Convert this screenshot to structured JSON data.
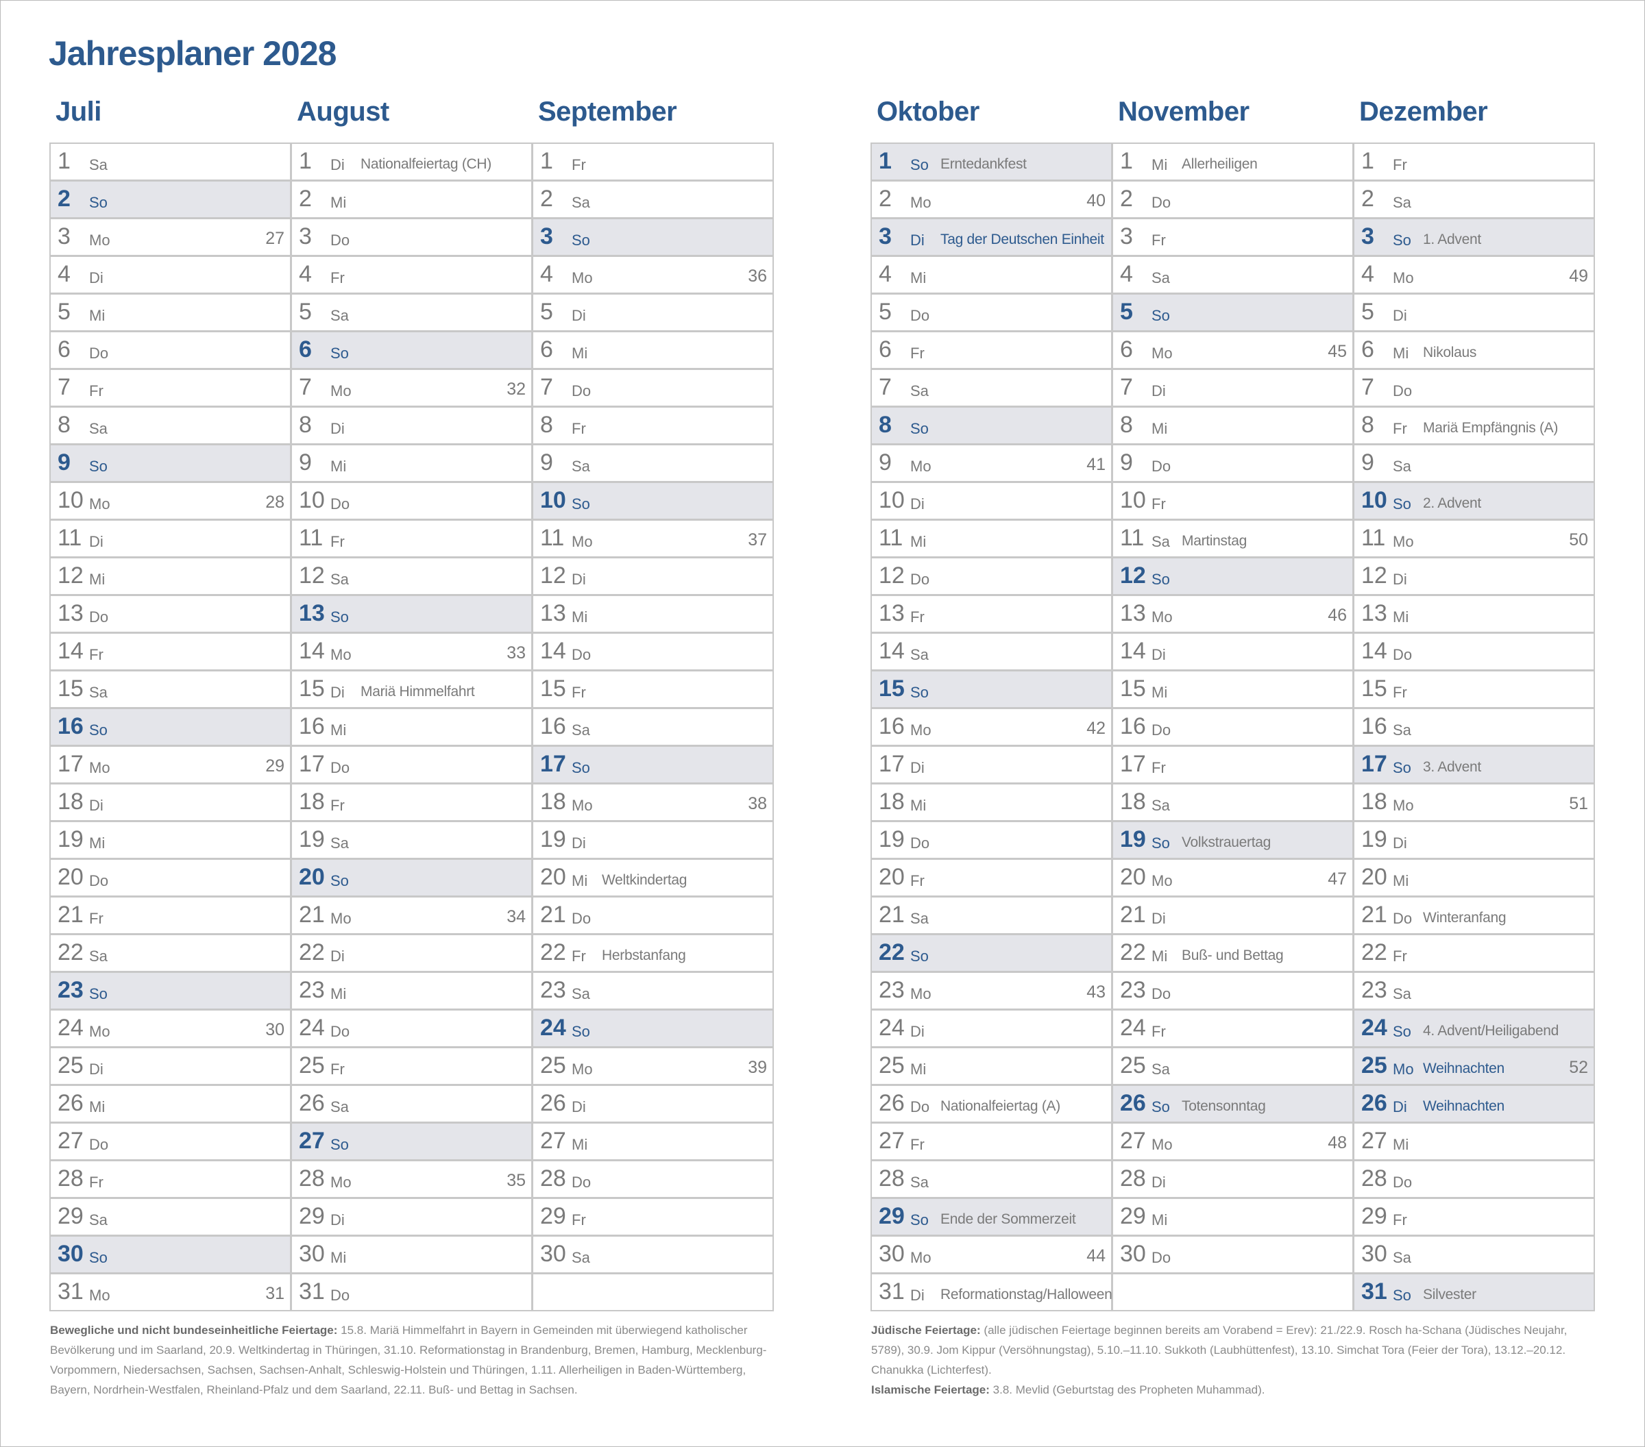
{
  "title": "Jahresplaner 2028",
  "months": [
    {
      "name": "Juli",
      "days": [
        {
          "d": 1,
          "wd": "Sa"
        },
        {
          "d": 2,
          "wd": "So"
        },
        {
          "d": 3,
          "wd": "Mo",
          "kw": 27
        },
        {
          "d": 4,
          "wd": "Di"
        },
        {
          "d": 5,
          "wd": "Mi"
        },
        {
          "d": 6,
          "wd": "Do"
        },
        {
          "d": 7,
          "wd": "Fr"
        },
        {
          "d": 8,
          "wd": "Sa"
        },
        {
          "d": 9,
          "wd": "So"
        },
        {
          "d": 10,
          "wd": "Mo",
          "kw": 28
        },
        {
          "d": 11,
          "wd": "Di"
        },
        {
          "d": 12,
          "wd": "Mi"
        },
        {
          "d": 13,
          "wd": "Do"
        },
        {
          "d": 14,
          "wd": "Fr"
        },
        {
          "d": 15,
          "wd": "Sa"
        },
        {
          "d": 16,
          "wd": "So"
        },
        {
          "d": 17,
          "wd": "Mo",
          "kw": 29
        },
        {
          "d": 18,
          "wd": "Di"
        },
        {
          "d": 19,
          "wd": "Mi"
        },
        {
          "d": 20,
          "wd": "Do"
        },
        {
          "d": 21,
          "wd": "Fr"
        },
        {
          "d": 22,
          "wd": "Sa"
        },
        {
          "d": 23,
          "wd": "So"
        },
        {
          "d": 24,
          "wd": "Mo",
          "kw": 30
        },
        {
          "d": 25,
          "wd": "Di"
        },
        {
          "d": 26,
          "wd": "Mi"
        },
        {
          "d": 27,
          "wd": "Do"
        },
        {
          "d": 28,
          "wd": "Fr"
        },
        {
          "d": 29,
          "wd": "Sa"
        },
        {
          "d": 30,
          "wd": "So"
        },
        {
          "d": 31,
          "wd": "Mo",
          "kw": 31
        }
      ]
    },
    {
      "name": "August",
      "days": [
        {
          "d": 1,
          "wd": "Di",
          "note": "Nationalfeiertag (CH)"
        },
        {
          "d": 2,
          "wd": "Mi"
        },
        {
          "d": 3,
          "wd": "Do"
        },
        {
          "d": 4,
          "wd": "Fr"
        },
        {
          "d": 5,
          "wd": "Sa"
        },
        {
          "d": 6,
          "wd": "So"
        },
        {
          "d": 7,
          "wd": "Mo",
          "kw": 32
        },
        {
          "d": 8,
          "wd": "Di"
        },
        {
          "d": 9,
          "wd": "Mi"
        },
        {
          "d": 10,
          "wd": "Do"
        },
        {
          "d": 11,
          "wd": "Fr"
        },
        {
          "d": 12,
          "wd": "Sa"
        },
        {
          "d": 13,
          "wd": "So"
        },
        {
          "d": 14,
          "wd": "Mo",
          "kw": 33
        },
        {
          "d": 15,
          "wd": "Di",
          "note": "Mariä Himmelfahrt"
        },
        {
          "d": 16,
          "wd": "Mi"
        },
        {
          "d": 17,
          "wd": "Do"
        },
        {
          "d": 18,
          "wd": "Fr"
        },
        {
          "d": 19,
          "wd": "Sa"
        },
        {
          "d": 20,
          "wd": "So"
        },
        {
          "d": 21,
          "wd": "Mo",
          "kw": 34
        },
        {
          "d": 22,
          "wd": "Di"
        },
        {
          "d": 23,
          "wd": "Mi"
        },
        {
          "d": 24,
          "wd": "Do"
        },
        {
          "d": 25,
          "wd": "Fr"
        },
        {
          "d": 26,
          "wd": "Sa"
        },
        {
          "d": 27,
          "wd": "So"
        },
        {
          "d": 28,
          "wd": "Mo",
          "kw": 35
        },
        {
          "d": 29,
          "wd": "Di"
        },
        {
          "d": 30,
          "wd": "Mi"
        },
        {
          "d": 31,
          "wd": "Do"
        }
      ]
    },
    {
      "name": "September",
      "days": [
        {
          "d": 1,
          "wd": "Fr"
        },
        {
          "d": 2,
          "wd": "Sa"
        },
        {
          "d": 3,
          "wd": "So"
        },
        {
          "d": 4,
          "wd": "Mo",
          "kw": 36
        },
        {
          "d": 5,
          "wd": "Di"
        },
        {
          "d": 6,
          "wd": "Mi"
        },
        {
          "d": 7,
          "wd": "Do"
        },
        {
          "d": 8,
          "wd": "Fr"
        },
        {
          "d": 9,
          "wd": "Sa"
        },
        {
          "d": 10,
          "wd": "So"
        },
        {
          "d": 11,
          "wd": "Mo",
          "kw": 37
        },
        {
          "d": 12,
          "wd": "Di"
        },
        {
          "d": 13,
          "wd": "Mi"
        },
        {
          "d": 14,
          "wd": "Do"
        },
        {
          "d": 15,
          "wd": "Fr"
        },
        {
          "d": 16,
          "wd": "Sa"
        },
        {
          "d": 17,
          "wd": "So"
        },
        {
          "d": 18,
          "wd": "Mo",
          "kw": 38
        },
        {
          "d": 19,
          "wd": "Di"
        },
        {
          "d": 20,
          "wd": "Mi",
          "note": "Weltkindertag"
        },
        {
          "d": 21,
          "wd": "Do"
        },
        {
          "d": 22,
          "wd": "Fr",
          "note": "Herbstanfang"
        },
        {
          "d": 23,
          "wd": "Sa"
        },
        {
          "d": 24,
          "wd": "So"
        },
        {
          "d": 25,
          "wd": "Mo",
          "kw": 39
        },
        {
          "d": 26,
          "wd": "Di"
        },
        {
          "d": 27,
          "wd": "Mi"
        },
        {
          "d": 28,
          "wd": "Do"
        },
        {
          "d": 29,
          "wd": "Fr"
        },
        {
          "d": 30,
          "wd": "Sa"
        }
      ]
    },
    {
      "name": "Oktober",
      "days": [
        {
          "d": 1,
          "wd": "So",
          "note": "Erntedankfest"
        },
        {
          "d": 2,
          "wd": "Mo",
          "kw": 40
        },
        {
          "d": 3,
          "wd": "Di",
          "note": "Tag der Deutschen Einheit",
          "public": true
        },
        {
          "d": 4,
          "wd": "Mi"
        },
        {
          "d": 5,
          "wd": "Do"
        },
        {
          "d": 6,
          "wd": "Fr"
        },
        {
          "d": 7,
          "wd": "Sa"
        },
        {
          "d": 8,
          "wd": "So"
        },
        {
          "d": 9,
          "wd": "Mo",
          "kw": 41
        },
        {
          "d": 10,
          "wd": "Di"
        },
        {
          "d": 11,
          "wd": "Mi"
        },
        {
          "d": 12,
          "wd": "Do"
        },
        {
          "d": 13,
          "wd": "Fr"
        },
        {
          "d": 14,
          "wd": "Sa"
        },
        {
          "d": 15,
          "wd": "So"
        },
        {
          "d": 16,
          "wd": "Mo",
          "kw": 42
        },
        {
          "d": 17,
          "wd": "Di"
        },
        {
          "d": 18,
          "wd": "Mi"
        },
        {
          "d": 19,
          "wd": "Do"
        },
        {
          "d": 20,
          "wd": "Fr"
        },
        {
          "d": 21,
          "wd": "Sa"
        },
        {
          "d": 22,
          "wd": "So"
        },
        {
          "d": 23,
          "wd": "Mo",
          "kw": 43
        },
        {
          "d": 24,
          "wd": "Di"
        },
        {
          "d": 25,
          "wd": "Mi"
        },
        {
          "d": 26,
          "wd": "Do",
          "note": "Nationalfeiertag (A)"
        },
        {
          "d": 27,
          "wd": "Fr"
        },
        {
          "d": 28,
          "wd": "Sa"
        },
        {
          "d": 29,
          "wd": "So",
          "note": "Ende der Sommerzeit"
        },
        {
          "d": 30,
          "wd": "Mo",
          "kw": 44
        },
        {
          "d": 31,
          "wd": "Di",
          "note": "Reformationstag/Halloween"
        }
      ]
    },
    {
      "name": "November",
      "days": [
        {
          "d": 1,
          "wd": "Mi",
          "note": "Allerheiligen"
        },
        {
          "d": 2,
          "wd": "Do"
        },
        {
          "d": 3,
          "wd": "Fr"
        },
        {
          "d": 4,
          "wd": "Sa"
        },
        {
          "d": 5,
          "wd": "So"
        },
        {
          "d": 6,
          "wd": "Mo",
          "kw": 45
        },
        {
          "d": 7,
          "wd": "Di"
        },
        {
          "d": 8,
          "wd": "Mi"
        },
        {
          "d": 9,
          "wd": "Do"
        },
        {
          "d": 10,
          "wd": "Fr"
        },
        {
          "d": 11,
          "wd": "Sa",
          "note": "Martinstag"
        },
        {
          "d": 12,
          "wd": "So"
        },
        {
          "d": 13,
          "wd": "Mo",
          "kw": 46
        },
        {
          "d": 14,
          "wd": "Di"
        },
        {
          "d": 15,
          "wd": "Mi"
        },
        {
          "d": 16,
          "wd": "Do"
        },
        {
          "d": 17,
          "wd": "Fr"
        },
        {
          "d": 18,
          "wd": "Sa"
        },
        {
          "d": 19,
          "wd": "So",
          "note": "Volkstrauertag"
        },
        {
          "d": 20,
          "wd": "Mo",
          "kw": 47
        },
        {
          "d": 21,
          "wd": "Di"
        },
        {
          "d": 22,
          "wd": "Mi",
          "note": "Buß- und Bettag"
        },
        {
          "d": 23,
          "wd": "Do"
        },
        {
          "d": 24,
          "wd": "Fr"
        },
        {
          "d": 25,
          "wd": "Sa"
        },
        {
          "d": 26,
          "wd": "So",
          "note": "Totensonntag"
        },
        {
          "d": 27,
          "wd": "Mo",
          "kw": 48
        },
        {
          "d": 28,
          "wd": "Di"
        },
        {
          "d": 29,
          "wd": "Mi"
        },
        {
          "d": 30,
          "wd": "Do"
        }
      ]
    },
    {
      "name": "Dezember",
      "days": [
        {
          "d": 1,
          "wd": "Fr"
        },
        {
          "d": 2,
          "wd": "Sa"
        },
        {
          "d": 3,
          "wd": "So",
          "note": "1. Advent"
        },
        {
          "d": 4,
          "wd": "Mo",
          "kw": 49
        },
        {
          "d": 5,
          "wd": "Di"
        },
        {
          "d": 6,
          "wd": "Mi",
          "note": "Nikolaus"
        },
        {
          "d": 7,
          "wd": "Do"
        },
        {
          "d": 8,
          "wd": "Fr",
          "note": "Mariä Empfängnis (A)"
        },
        {
          "d": 9,
          "wd": "Sa"
        },
        {
          "d": 10,
          "wd": "So",
          "note": "2. Advent"
        },
        {
          "d": 11,
          "wd": "Mo",
          "kw": 50
        },
        {
          "d": 12,
          "wd": "Di"
        },
        {
          "d": 13,
          "wd": "Mi"
        },
        {
          "d": 14,
          "wd": "Do"
        },
        {
          "d": 15,
          "wd": "Fr"
        },
        {
          "d": 16,
          "wd": "Sa"
        },
        {
          "d": 17,
          "wd": "So",
          "note": "3. Advent"
        },
        {
          "d": 18,
          "wd": "Mo",
          "kw": 51
        },
        {
          "d": 19,
          "wd": "Di"
        },
        {
          "d": 20,
          "wd": "Mi"
        },
        {
          "d": 21,
          "wd": "Do",
          "note": "Winteranfang"
        },
        {
          "d": 22,
          "wd": "Fr"
        },
        {
          "d": 23,
          "wd": "Sa"
        },
        {
          "d": 24,
          "wd": "So",
          "note": "4. Advent/Heiligabend"
        },
        {
          "d": 25,
          "wd": "Mo",
          "note": "Weihnachten",
          "kw": 52,
          "public": true
        },
        {
          "d": 26,
          "wd": "Di",
          "note": "Weihnachten",
          "public": true
        },
        {
          "d": 27,
          "wd": "Mi"
        },
        {
          "d": 28,
          "wd": "Do"
        },
        {
          "d": 29,
          "wd": "Fr"
        },
        {
          "d": 30,
          "wd": "Sa"
        },
        {
          "d": 31,
          "wd": "So",
          "note": "Silvester"
        }
      ]
    }
  ],
  "footnotes": {
    "left": [
      {
        "label": "Bewegliche und nicht bundeseinheitliche Feiertage:",
        "text": "15.8. Mariä Himmelfahrt in Bayern in Gemeinden mit überwiegend katholischer Bevölkerung und im Saarland, 20.9. Weltkindertag in Thüringen, 31.10. Reformationstag in Brandenburg, Bremen, Hamburg, Mecklenburg-Vorpommern, Niedersachsen, Sachsen, Sachsen-Anhalt, Schleswig-Holstein und Thüringen, 1.11. Allerheiligen in Baden-Württemberg, Bayern, Nordrhein-Westfalen, Rheinland-Pfalz und dem Saarland, 22.11. Buß- und Bettag in Sachsen."
      }
    ],
    "right": [
      {
        "label": "Jüdische Feiertage:",
        "text": "(alle jüdischen Feiertage beginnen bereits am Vorabend = Erev): 21./22.9. Rosch ha-Schana (Jüdisches Neujahr, 5789), 30.9. Jom Kippur (Versöhnungstag), 5.10.–11.10. Sukkoth (Laubhüttenfest), 13.10. Simchat Tora (Feier der Tora), 13.12.–20.12. Chanukka (Lichterfest)."
      },
      {
        "label": "Islamische Feiertage:",
        "text": "3.8. Mevlid (Geburtstag des Propheten Muhammad)."
      }
    ]
  }
}
